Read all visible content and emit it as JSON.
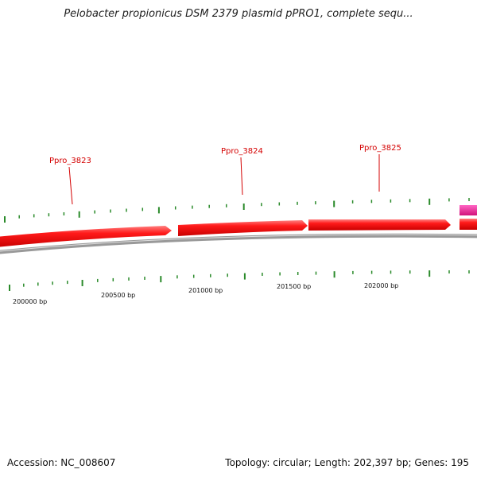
{
  "title": "Pelobacter propionicus DSM 2379 plasmid pPRO1, complete sequ...",
  "footer": {
    "accession": "Accession: NC_008607",
    "summary": "Topology: circular; Length: 202,397 bp; Genes: 195"
  },
  "genes": [
    {
      "name": "Ppro_3823"
    },
    {
      "name": "Ppro_3824"
    },
    {
      "name": "Ppro_3825"
    }
  ],
  "bp_labels": [
    "200000 bp",
    "200500 bp",
    "201000 bp",
    "201500 bp",
    "202000 bp"
  ],
  "colors": {
    "gene_forward": "#ff1a1a",
    "gene_other": "#e8168c",
    "backbone": "#888888",
    "ticks": "#2a8a2a",
    "labels": "#d40000"
  }
}
